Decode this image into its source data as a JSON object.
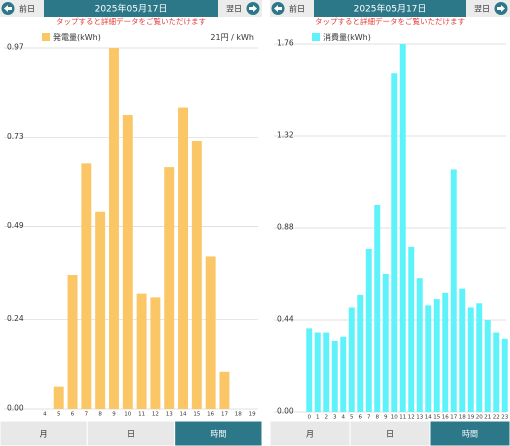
{
  "chart_data": [
    {
      "type": "bar",
      "annotation": "21円 / kWh",
      "categories": [
        "4",
        "5",
        "6",
        "7",
        "8",
        "9",
        "10",
        "11",
        "12",
        "13",
        "14",
        "15",
        "16",
        "17",
        "18",
        "19"
      ],
      "series": [
        {
          "name": "発電量(kWh)",
          "color": "#fbc766",
          "values": [
            0,
            0.06,
            0.36,
            0.66,
            0.53,
            0.97,
            0.79,
            0.31,
            0.3,
            0.65,
            0.81,
            0.72,
            0.41,
            0.1,
            0,
            0
          ]
        }
      ],
      "ylim": [
        0,
        0.97
      ],
      "yticks": [
        {
          "value": 0,
          "label": "0.00"
        },
        0.24,
        0.49,
        0.73,
        0.97
      ],
      "grid": true
    },
    {
      "type": "bar",
      "categories": [
        "0",
        "1",
        "2",
        "3",
        "4",
        "5",
        "6",
        "7",
        "8",
        "9",
        "10",
        "11",
        "12",
        "13",
        "14",
        "15",
        "16",
        "17",
        "18",
        "19",
        "20",
        "21",
        "22",
        "23"
      ],
      "series": [
        {
          "name": "消費量(kWh)",
          "color": "#5ef3fb",
          "values": [
            0.4,
            0.38,
            0.38,
            0.34,
            0.36,
            0.5,
            0.56,
            0.78,
            0.99,
            0.66,
            1.62,
            1.76,
            0.79,
            0.64,
            0.51,
            0.54,
            0.57,
            1.16,
            0.59,
            0.5,
            0.52,
            0.44,
            0.38,
            0.35
          ]
        }
      ],
      "ylim": [
        0,
        1.76
      ],
      "yticks": [
        {
          "value": 0,
          "label": "0.00"
        },
        0.44,
        0.88,
        1.32,
        1.76
      ],
      "grid": true
    }
  ],
  "ui": {
    "panels": [
      {
        "prev": "前日",
        "date": "2025年05月17日",
        "next": "翌日",
        "hint": "タップすると詳細データをご覧いただけます",
        "tabs": [
          "月",
          "日",
          "時間"
        ],
        "active_tab": 2
      },
      {
        "prev": "前日",
        "date": "2025年05月17日",
        "next": "翌日",
        "hint": "タップすると詳細データをご覧いただけます",
        "tabs": [
          "月",
          "日",
          "時間"
        ],
        "active_tab": 2
      }
    ]
  }
}
